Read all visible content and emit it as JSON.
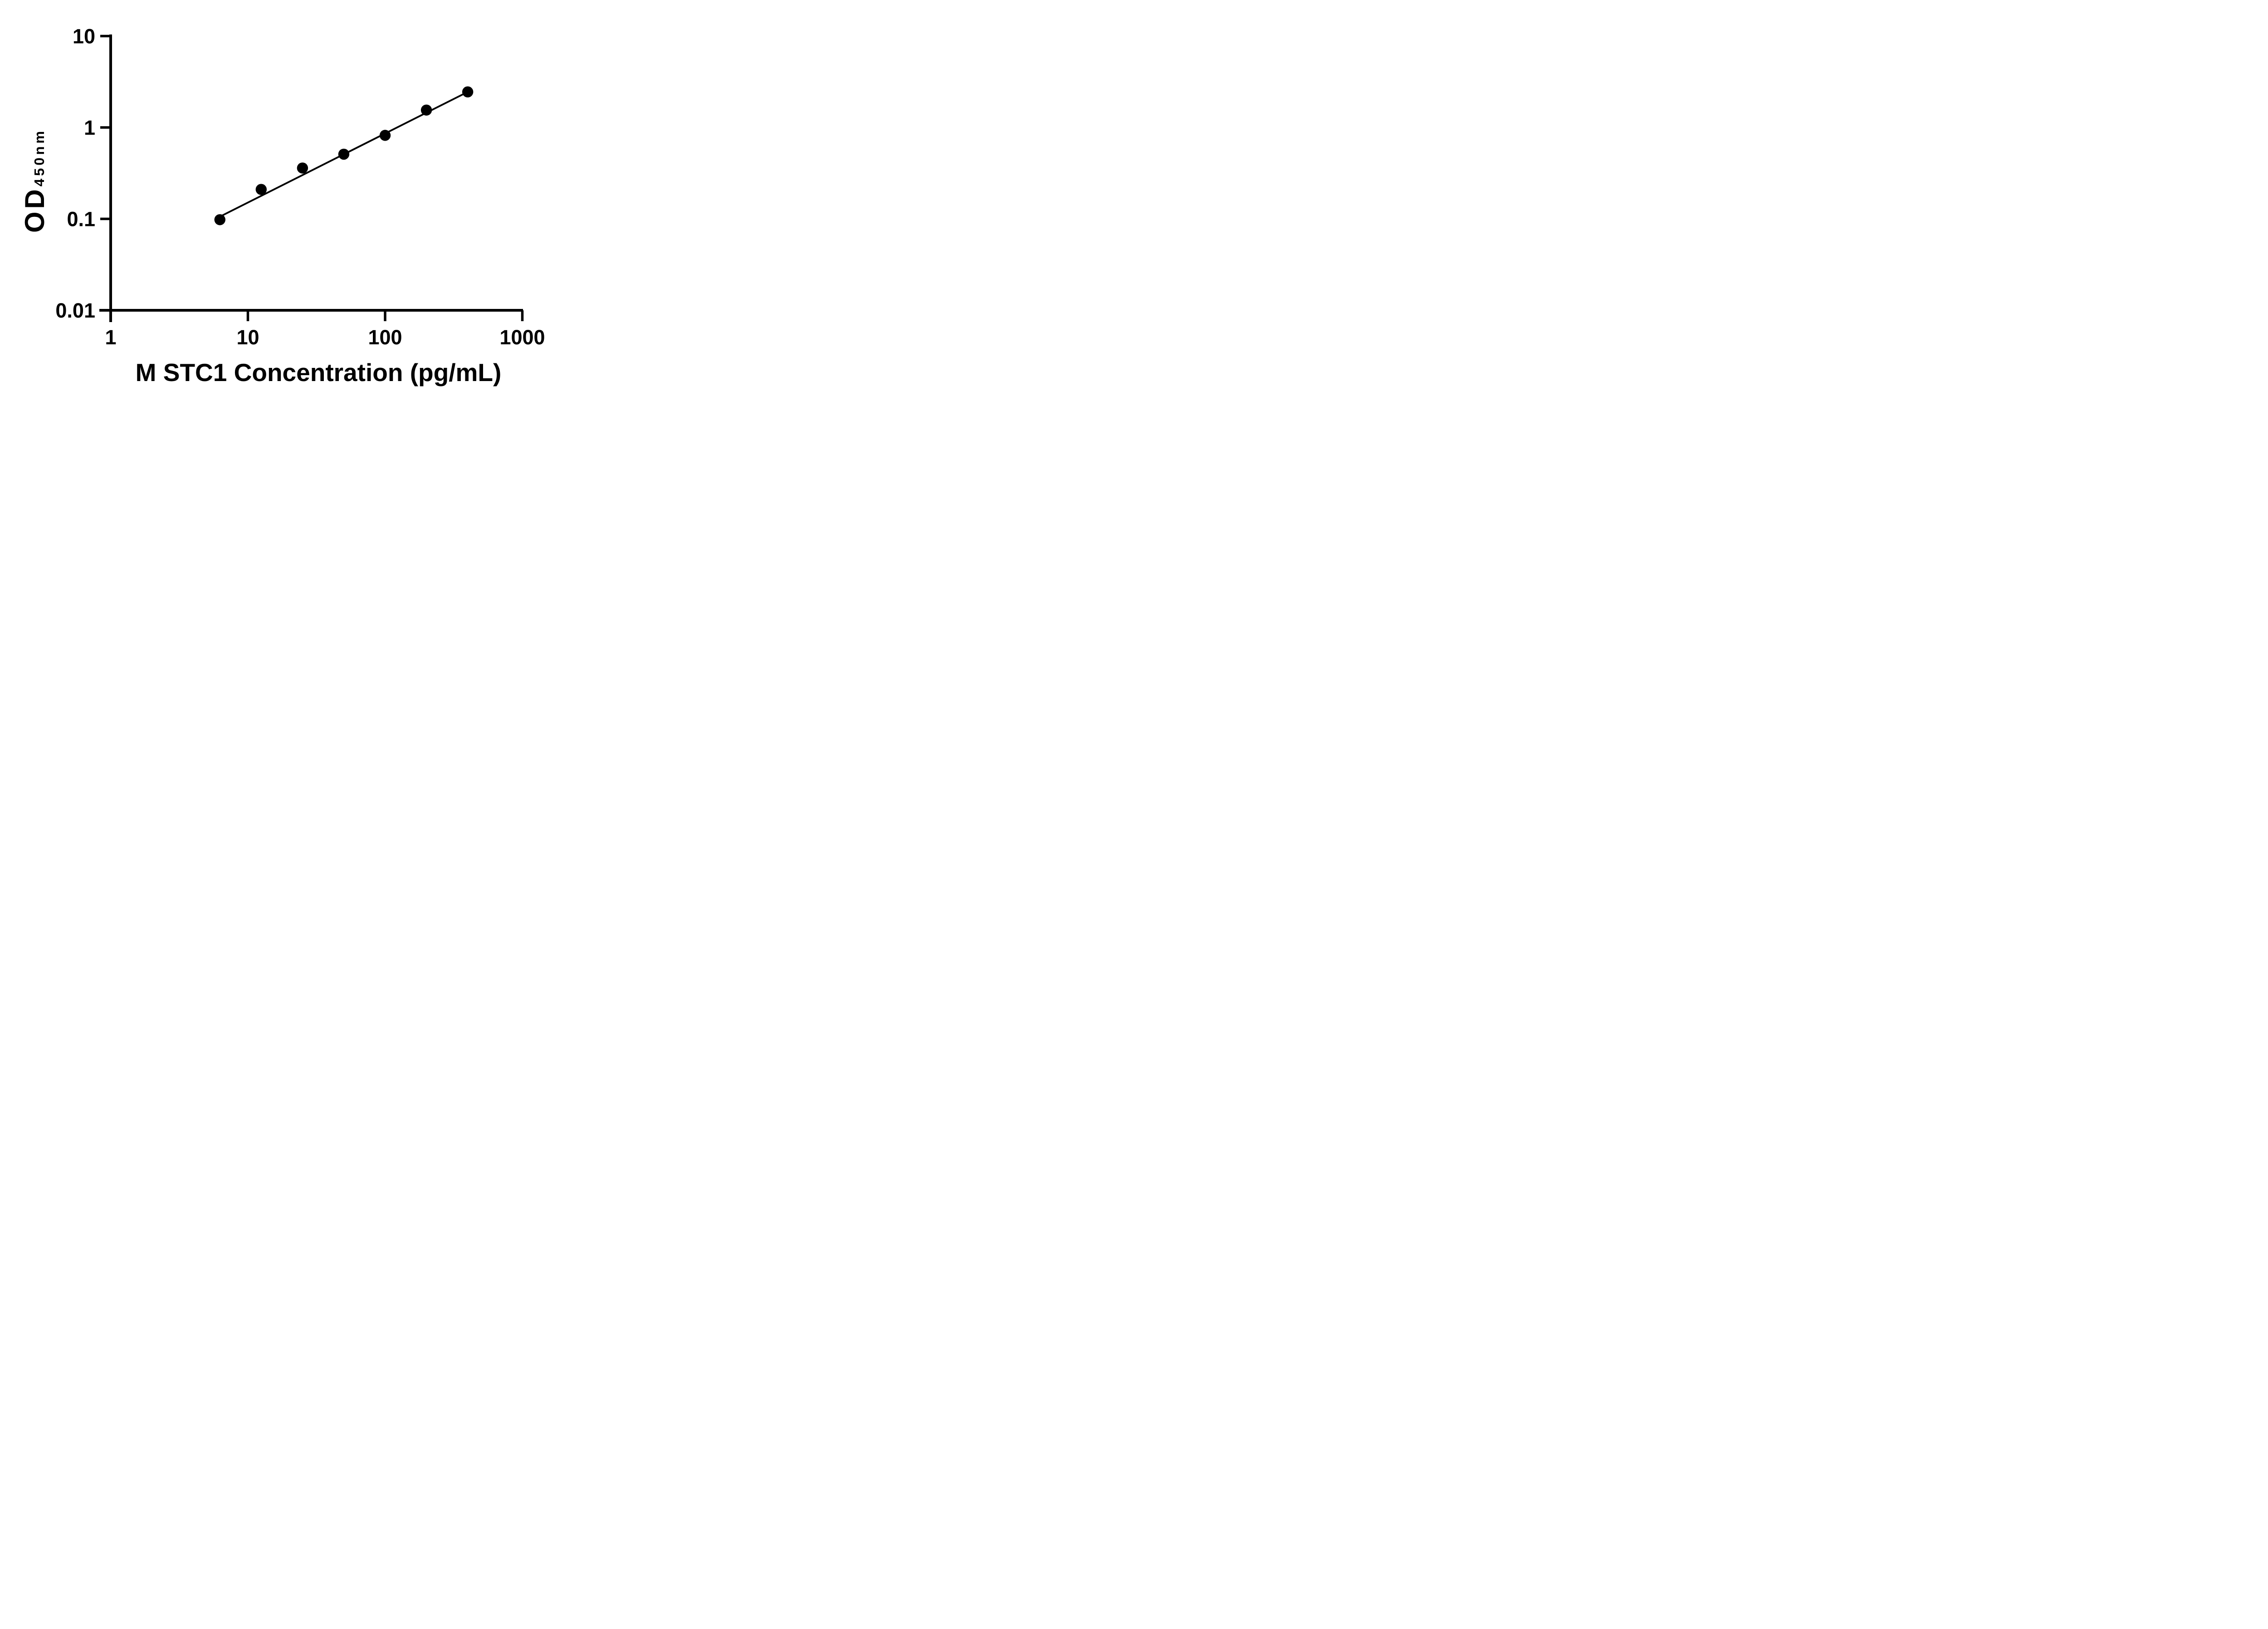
{
  "figure": {
    "background_color": "#ffffff",
    "ink_color": "#000000"
  },
  "chart_data": {
    "type": "scatter",
    "title": "",
    "xlabel": "M STC1 Concentration (pg/mL)",
    "ylabel": "OD450nm",
    "ylabel_main": "OD",
    "ylabel_sub": "450nm",
    "x_scale": "log10",
    "y_scale": "log10",
    "xlim": [
      1,
      1000
    ],
    "ylim": [
      0.01,
      10
    ],
    "grid": "off",
    "legend": "none",
    "marker": {
      "shape": "filled-circle",
      "color": "#000000"
    },
    "x_ticks": [
      {
        "value": 1,
        "label": "1"
      },
      {
        "value": 10,
        "label": "10"
      },
      {
        "value": 100,
        "label": "100"
      },
      {
        "value": 1000,
        "label": "1000"
      }
    ],
    "y_ticks": [
      {
        "value": 10,
        "label": "10"
      },
      {
        "value": 1,
        "label": "1"
      },
      {
        "value": 0.1,
        "label": "0.1"
      },
      {
        "value": 0.01,
        "label": "0.01"
      }
    ],
    "points": [
      {
        "x": 6.25,
        "y": 0.098
      },
      {
        "x": 12.5,
        "y": 0.21
      },
      {
        "x": 25,
        "y": 0.36
      },
      {
        "x": 50,
        "y": 0.51
      },
      {
        "x": 100,
        "y": 0.82
      },
      {
        "x": 200,
        "y": 1.55
      },
      {
        "x": 400,
        "y": 2.45
      }
    ],
    "trend_line": {
      "x1": 6.35,
      "y1": 0.107,
      "x2": 400,
      "y2": 2.45
    }
  }
}
